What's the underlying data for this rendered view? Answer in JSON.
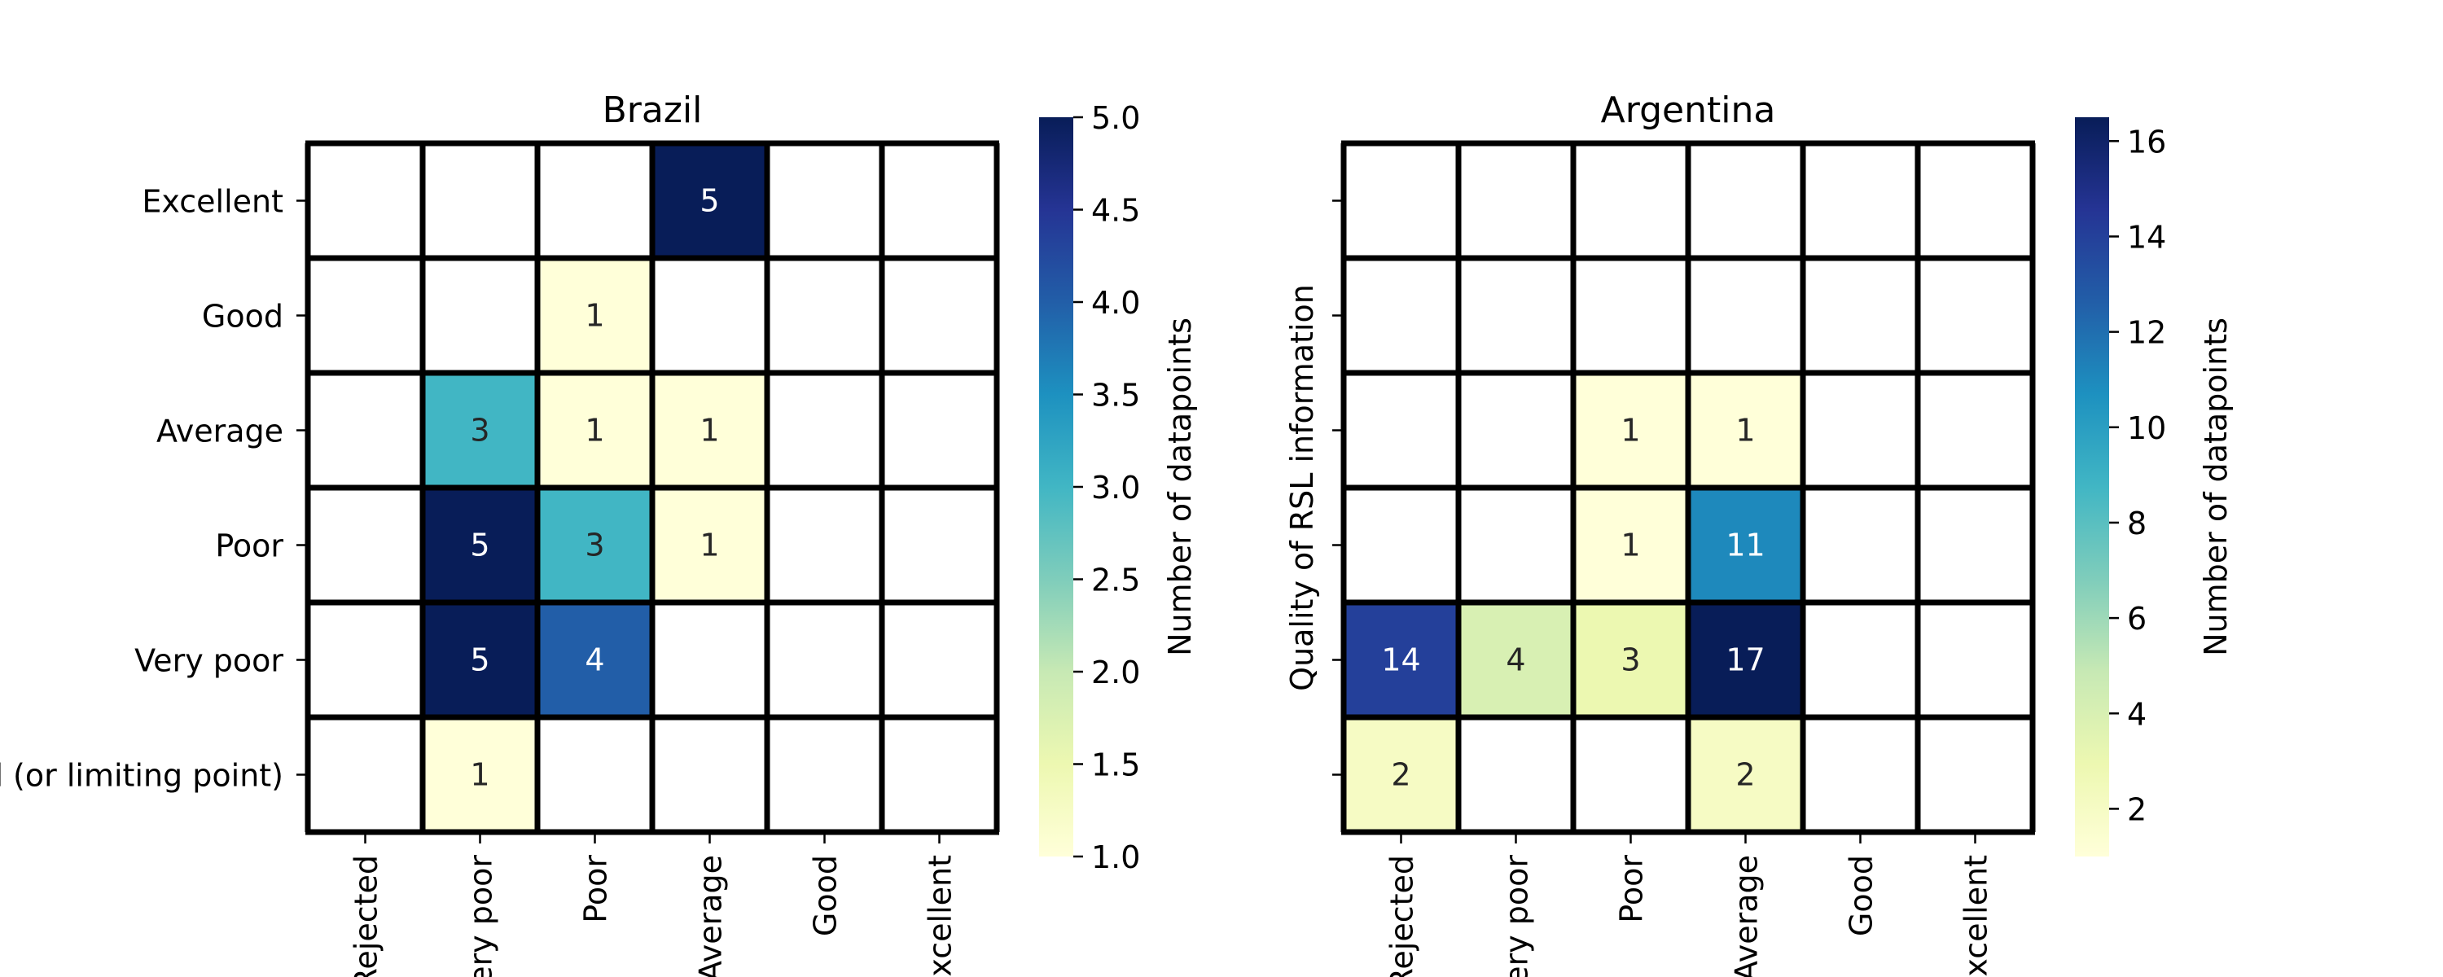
{
  "chart_data": [
    {
      "type": "heatmap",
      "title": "Brazil",
      "rows": [
        "Excellent",
        "Good",
        "Average",
        "Poor",
        "Very poor",
        "Rejected (or limiting point)"
      ],
      "columns": [
        "Rejected",
        "Very poor",
        "Poor",
        "Average",
        "Good",
        "Excellent"
      ],
      "values": [
        [
          null,
          null,
          null,
          5,
          null,
          null
        ],
        [
          null,
          null,
          1,
          null,
          null,
          null
        ],
        [
          null,
          3,
          1,
          1,
          null,
          null
        ],
        [
          null,
          5,
          3,
          1,
          null,
          null
        ],
        [
          null,
          5,
          4,
          null,
          null,
          null
        ],
        [
          null,
          1,
          null,
          null,
          null,
          null
        ]
      ],
      "ylabel": "",
      "xlabel": "",
      "colorbar": {
        "label": "Number of datapoints",
        "range": [
          1,
          5
        ],
        "ticks": [
          1.0,
          1.5,
          2.0,
          2.5,
          3.0,
          3.5,
          4.0,
          4.5,
          5.0
        ],
        "tick_labels": [
          "1.0",
          "1.5",
          "2.0",
          "2.5",
          "3.0",
          "3.5",
          "4.0",
          "4.5",
          "5.0"
        ]
      },
      "show_row_labels": true,
      "colormap": "YlGnBu"
    },
    {
      "type": "heatmap",
      "title": "Argentina",
      "rows": [
        "Excellent",
        "Good",
        "Average",
        "Poor",
        "Very poor",
        "Rejected (or limiting point)"
      ],
      "columns": [
        "Rejected",
        "Very poor",
        "Poor",
        "Average",
        "Good",
        "Excellent"
      ],
      "values": [
        [
          null,
          null,
          null,
          null,
          null,
          null
        ],
        [
          null,
          null,
          null,
          null,
          null,
          null
        ],
        [
          null,
          null,
          1,
          1,
          null,
          null
        ],
        [
          null,
          null,
          1,
          11,
          null,
          null
        ],
        [
          14,
          4,
          3,
          17,
          null,
          null
        ],
        [
          2,
          null,
          null,
          2,
          null,
          null
        ]
      ],
      "ylabel": "Quality of RSL information",
      "xlabel": "",
      "colorbar": {
        "label": "Number of datapoints",
        "range": [
          1,
          16.5
        ],
        "ticks": [
          2,
          4,
          6,
          8,
          10,
          12,
          14,
          16
        ],
        "tick_labels": [
          "2",
          "4",
          "6",
          "8",
          "10",
          "12",
          "14",
          "16"
        ]
      },
      "show_row_labels": false,
      "colormap": "YlGnBu"
    }
  ]
}
